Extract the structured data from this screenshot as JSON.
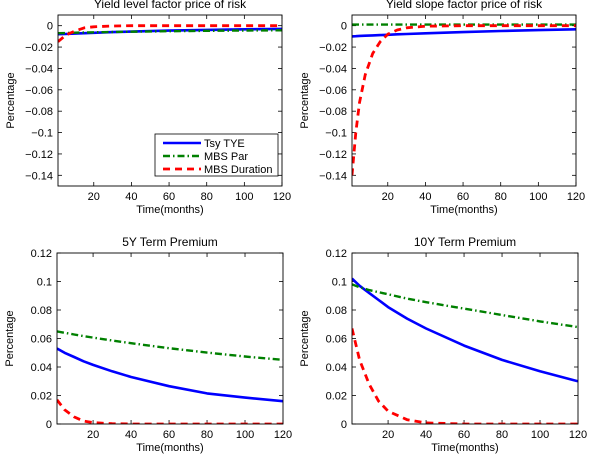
{
  "legend": {
    "placement": "bottom-right of first panel",
    "entries": [
      "Tsy TYE",
      "MBS Par",
      "MBS Duration"
    ]
  },
  "colors": {
    "Tsy TYE": "#0000ff",
    "MBS Par": "#008000",
    "MBS Duration": "#ff0000"
  },
  "chart_data": [
    {
      "type": "line",
      "title": "Yield level factor price of risk",
      "xlabel": "Time(months)",
      "ylabel": "Percentage",
      "xlim": [
        1,
        120
      ],
      "ylim": [
        -0.15,
        0.01
      ],
      "xticks": [
        20,
        40,
        60,
        80,
        100,
        120
      ],
      "yticks": [
        0,
        -0.02,
        -0.04,
        -0.06,
        -0.08,
        -0.1,
        -0.12,
        -0.14
      ],
      "x": [
        1,
        5,
        10,
        15,
        20,
        30,
        40,
        60,
        80,
        100,
        120
      ],
      "series": [
        {
          "name": "Tsy TYE",
          "values": [
            -0.008,
            -0.0078,
            -0.0074,
            -0.007,
            -0.0067,
            -0.006,
            -0.0055,
            -0.0046,
            -0.0039,
            -0.0034,
            -0.003
          ]
        },
        {
          "name": "MBS Par",
          "values": [
            -0.007,
            -0.0068,
            -0.0066,
            -0.0064,
            -0.0062,
            -0.0059,
            -0.0056,
            -0.0052,
            -0.0048,
            -0.0045,
            -0.0043
          ]
        },
        {
          "name": "MBS Duration",
          "values": [
            -0.015,
            -0.009,
            -0.005,
            -0.002,
            -0.001,
            -0.0003,
            0,
            0,
            0,
            0,
            0
          ]
        }
      ]
    },
    {
      "type": "line",
      "title": "Yield slope factor price of risk",
      "xlabel": "Time(months)",
      "ylabel": "Percentage",
      "xlim": [
        1,
        120
      ],
      "ylim": [
        -0.15,
        0.01
      ],
      "xticks": [
        20,
        40,
        60,
        80,
        100,
        120
      ],
      "yticks": [
        0,
        -0.02,
        -0.04,
        -0.06,
        -0.08,
        -0.1,
        -0.12,
        -0.14
      ],
      "x": [
        1,
        3,
        5,
        8,
        12,
        16,
        20,
        25,
        30,
        40,
        60,
        80,
        100,
        120
      ],
      "series": [
        {
          "name": "Tsy TYE",
          "values": [
            -0.01,
            -0.0098,
            -0.0096,
            -0.0094,
            -0.0091,
            -0.0088,
            -0.0085,
            -0.0081,
            -0.0078,
            -0.0071,
            -0.006,
            -0.005,
            -0.0041,
            -0.0034
          ]
        },
        {
          "name": "MBS Par",
          "values": [
            0.001,
            0.001,
            0.001,
            0.001,
            0.001,
            0.001,
            0.001,
            0.001,
            0.001,
            0.001,
            0.001,
            0.001,
            0.001,
            0.001
          ]
        },
        {
          "name": "MBS Duration",
          "values": [
            -0.14,
            -0.1,
            -0.072,
            -0.046,
            -0.026,
            -0.015,
            -0.008,
            -0.004,
            -0.002,
            -0.0005,
            0,
            0,
            0,
            0
          ]
        }
      ]
    },
    {
      "type": "line",
      "title": "5Y Term Premium",
      "xlabel": "Time(months)",
      "ylabel": "Percentage",
      "xlim": [
        1,
        120
      ],
      "ylim": [
        0,
        0.12
      ],
      "xticks": [
        20,
        40,
        60,
        80,
        100,
        120
      ],
      "yticks": [
        0,
        0.02,
        0.04,
        0.06,
        0.08,
        0.1,
        0.12
      ],
      "x": [
        1,
        5,
        10,
        15,
        20,
        30,
        40,
        60,
        80,
        100,
        120
      ],
      "series": [
        {
          "name": "Tsy TYE",
          "values": [
            0.053,
            0.05,
            0.047,
            0.044,
            0.0415,
            0.037,
            0.033,
            0.0265,
            0.0215,
            0.0185,
            0.016
          ]
        },
        {
          "name": "MBS Par",
          "values": [
            0.065,
            0.064,
            0.0628,
            0.0617,
            0.0606,
            0.0586,
            0.0567,
            0.0532,
            0.0501,
            0.0474,
            0.045
          ]
        },
        {
          "name": "MBS Duration",
          "values": [
            0.017,
            0.01,
            0.005,
            0.002,
            0.001,
            0.0002,
            0,
            0,
            0,
            0,
            0
          ]
        }
      ]
    },
    {
      "type": "line",
      "title": "10Y Term Premium",
      "xlabel": "Time(months)",
      "ylabel": "Percentage",
      "xlim": [
        1,
        120
      ],
      "ylim": [
        0,
        0.12
      ],
      "xticks": [
        20,
        40,
        60,
        80,
        100,
        120
      ],
      "yticks": [
        0,
        0.02,
        0.04,
        0.06,
        0.08,
        0.1,
        0.12
      ],
      "x": [
        1,
        5,
        10,
        15,
        20,
        30,
        40,
        60,
        80,
        100,
        120
      ],
      "series": [
        {
          "name": "Tsy TYE",
          "values": [
            0.102,
            0.097,
            0.092,
            0.087,
            0.082,
            0.074,
            0.067,
            0.055,
            0.045,
            0.037,
            0.03
          ]
        },
        {
          "name": "MBS Par",
          "values": [
            0.098,
            0.096,
            0.094,
            0.0925,
            0.091,
            0.088,
            0.0855,
            0.081,
            0.0765,
            0.072,
            0.068
          ]
        },
        {
          "name": "MBS Duration",
          "values": [
            0.067,
            0.045,
            0.028,
            0.016,
            0.009,
            0.003,
            0.0008,
            0,
            0,
            0,
            0
          ]
        }
      ]
    }
  ]
}
